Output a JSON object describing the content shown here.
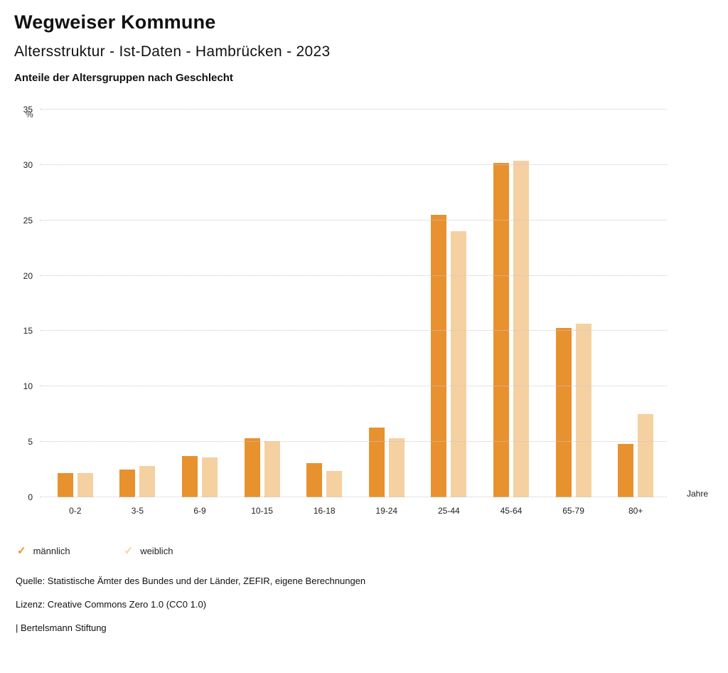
{
  "header": {
    "title": "Wegweiser Kommune",
    "subtitle": "Altersstruktur - Ist-Daten - Hambrücken - 2023",
    "chart_heading": "Anteile der Altersgruppen nach Geschlecht"
  },
  "chart_data": {
    "type": "bar",
    "title": "Anteile der Altersgruppen nach Geschlecht",
    "xlabel": "Jahre",
    "ylabel": "%",
    "ylim": [
      0,
      35
    ],
    "yticks": [
      0,
      5,
      10,
      15,
      20,
      25,
      30,
      35
    ],
    "grid": "dotted-horizontal",
    "legend_position": "bottom-left",
    "categories": [
      "0-2",
      "3-5",
      "6-9",
      "10-15",
      "16-18",
      "19-24",
      "25-44",
      "45-64",
      "65-79",
      "80+"
    ],
    "series": [
      {
        "name": "männlich",
        "color": "#E8912F",
        "values": [
          2.2,
          2.5,
          3.7,
          5.3,
          3.1,
          6.3,
          25.5,
          30.2,
          15.3,
          4.8
        ]
      },
      {
        "name": "weiblich",
        "color": "#F5D0A1",
        "values": [
          2.2,
          2.8,
          3.6,
          5.1,
          2.4,
          5.3,
          24.0,
          30.4,
          15.7,
          7.5
        ]
      }
    ]
  },
  "legend": {
    "mark_glyph": "✓",
    "items": [
      {
        "label": "männlich",
        "color": "#E8912F"
      },
      {
        "label": "weiblich",
        "color": "#F5D0A1"
      }
    ]
  },
  "footer": {
    "source": "Quelle: Statistische Ämter des Bundes und der Länder, ZEFIR, eigene Berechnungen",
    "license": "Lizenz: Creative Commons Zero 1.0 (CC0 1.0)",
    "attribution": "| Bertelsmann Stiftung"
  }
}
